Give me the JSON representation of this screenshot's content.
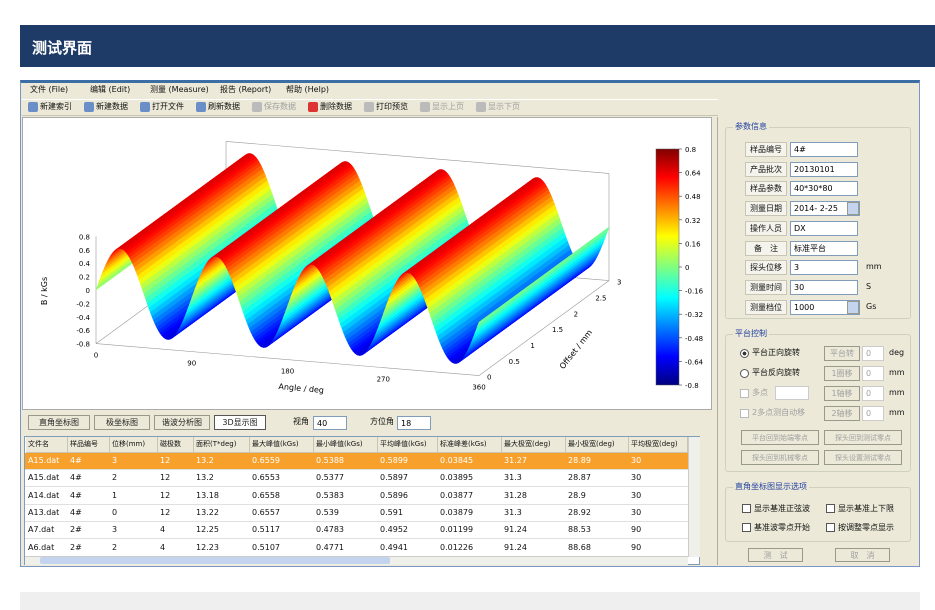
{
  "header": {
    "title": "测试界面"
  },
  "menu": [
    "文件 (File)",
    "编辑 (Edit)",
    "测量 (Measure)",
    "报告 (Report)",
    "帮助 (Help)"
  ],
  "toolbar": [
    "新建索引",
    "新建数据",
    "打开文件",
    "刷新数据",
    "保存数据",
    "删除数据",
    "打印预览",
    "显示上页",
    "显示下页"
  ],
  "plot": {
    "z_label": "B / kGs",
    "x_label": "Angle / deg",
    "y_label": "Offset / mm",
    "z_ticks": [
      "0.8",
      "0.6",
      "0.4",
      "0.2",
      "0",
      "-0.2",
      "-0.4",
      "-0.6",
      "-0.8"
    ],
    "x_ticks": [
      "0",
      "90",
      "180",
      "270",
      "360"
    ],
    "y_ticks": [
      "0",
      "0.5",
      "1",
      "1.5",
      "2",
      "2.5",
      "3"
    ],
    "colorbar_ticks": [
      "0.8",
      "0.64",
      "0.48",
      "0.32",
      "0.16",
      "0",
      "-0.16",
      "-0.32",
      "-0.48",
      "-0.64",
      "-0.8"
    ]
  },
  "tabs": [
    "直角坐标图",
    "极坐标图",
    "谐波分析图",
    "3D显示图"
  ],
  "view": {
    "angle_label": "视角",
    "angle": "40",
    "azimuth_label": "方位角",
    "azimuth": "18"
  },
  "table": {
    "columns": [
      "文件名",
      "样品编号",
      "位移(mm)",
      "磁极数",
      "面积(T*deg)",
      "最大峰值(kGs)",
      "最小峰值(kGs)",
      "平均峰值(kGs)",
      "标准峰差(kGs)",
      "最大极宽(deg)",
      "最小极宽(deg)",
      "平均极宽(deg)"
    ],
    "rows": [
      [
        "A15.dat",
        "4#",
        "3",
        "12",
        "13.2",
        "0.6559",
        "0.5388",
        "0.5899",
        "0.03845",
        "31.27",
        "28.89",
        "30"
      ],
      [
        "A15.dat",
        "4#",
        "2",
        "12",
        "13.2",
        "0.6553",
        "0.5377",
        "0.5897",
        "0.03895",
        "31.3",
        "28.87",
        "30"
      ],
      [
        "A14.dat",
        "4#",
        "1",
        "12",
        "13.18",
        "0.6558",
        "0.5383",
        "0.5896",
        "0.03877",
        "31.28",
        "28.9",
        "30"
      ],
      [
        "A13.dat",
        "4#",
        "0",
        "12",
        "13.22",
        "0.6557",
        "0.539",
        "0.591",
        "0.03879",
        "31.3",
        "28.92",
        "30"
      ],
      [
        "A7.dat",
        "2#",
        "3",
        "4",
        "12.25",
        "0.5117",
        "0.4783",
        "0.4952",
        "0.01199",
        "91.24",
        "88.53",
        "90"
      ],
      [
        "A6.dat",
        "2#",
        "2",
        "4",
        "12.23",
        "0.5107",
        "0.4771",
        "0.4941",
        "0.01226",
        "91.24",
        "88.68",
        "90"
      ]
    ]
  },
  "params": {
    "title": "参数信息",
    "fields": [
      {
        "label": "样品编号",
        "value": "4#"
      },
      {
        "label": "产品批次",
        "value": "20130101"
      },
      {
        "label": "样品参数",
        "value": "40*30*80"
      },
      {
        "label": "测量日期",
        "value": "2014- 2-25"
      },
      {
        "label": "操作人员",
        "value": "DX"
      },
      {
        "label": "备　注",
        "value": "标准平台"
      },
      {
        "label": "探头位移",
        "value": "3",
        "unit": "mm"
      },
      {
        "label": "测量时间",
        "value": "30",
        "unit": "S"
      },
      {
        "label": "测量档位",
        "value": "1000",
        "unit": "Gs"
      }
    ]
  },
  "platform": {
    "title": "平台控制",
    "radios": [
      "平台正向旋转",
      "平台反向旋转"
    ],
    "moves": [
      {
        "label": "平台转",
        "value": "0",
        "unit": "deg"
      },
      {
        "label": "1圈移",
        "value": "0",
        "unit": "mm"
      },
      {
        "label": "1轴移",
        "value": "0",
        "unit": "mm"
      },
      {
        "label": "2轴移",
        "value": "0",
        "unit": "mm"
      }
    ],
    "checks": [
      "多点",
      "2多点测自动移"
    ],
    "buttons": [
      "平台回到始端零点",
      "探头回到测试零点",
      "探头回到机械零点",
      "探头设置测试零点"
    ]
  },
  "display": {
    "title": "直角坐标图显示选项",
    "options": [
      "显示基准正弦波",
      "显示基准上下限",
      "基准波零点开始",
      "按调整零点显示"
    ]
  },
  "actions": [
    "测　试",
    "取　消"
  ]
}
